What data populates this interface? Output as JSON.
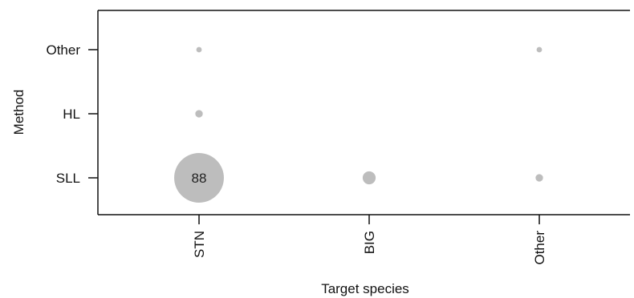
{
  "chart_data": {
    "type": "scatter",
    "subtype": "bubble",
    "title": "",
    "xlabel": "Target species",
    "ylabel": "Method",
    "x_categories": [
      "STN",
      "BIG",
      "Other"
    ],
    "y_categories": [
      "SLL",
      "HL",
      "Other"
    ],
    "points": [
      {
        "x": "STN",
        "y": "SLL",
        "value": 88,
        "label": "88"
      },
      {
        "x": "STN",
        "y": "HL",
        "value": 2
      },
      {
        "x": "STN",
        "y": "Other",
        "value": 1
      },
      {
        "x": "BIG",
        "y": "SLL",
        "value": 6
      },
      {
        "x": "Other",
        "y": "SLL",
        "value": 2
      },
      {
        "x": "Other",
        "y": "Other",
        "value": 1
      }
    ],
    "point_color": "#bdbdbd",
    "grid": false,
    "legend": "none"
  }
}
